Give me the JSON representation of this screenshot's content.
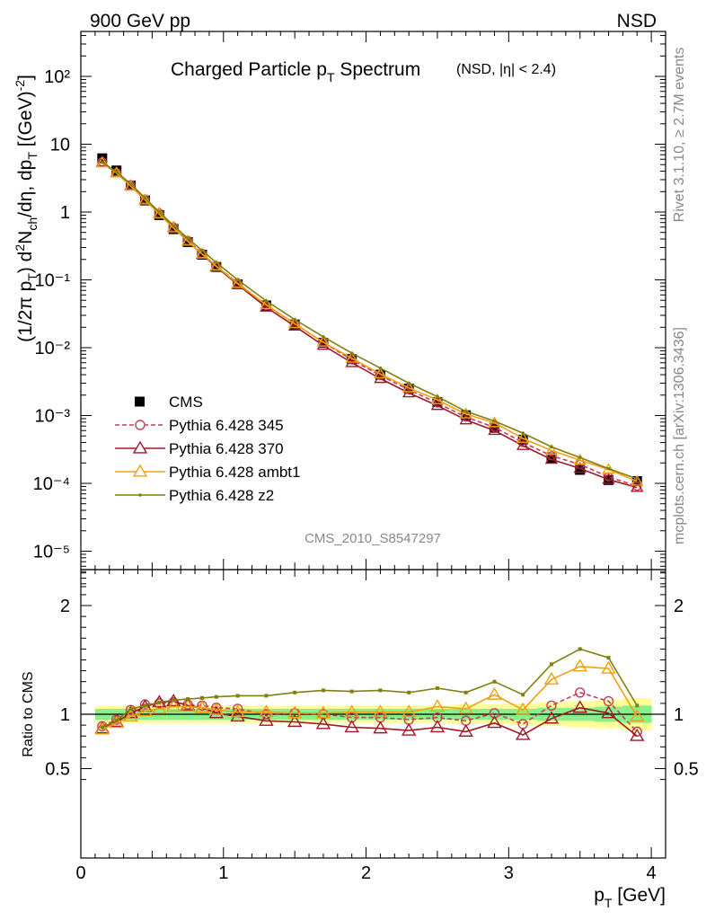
{
  "header": {
    "energy_label": "900 GeV pp",
    "selection_label": "NSD"
  },
  "side_labels": {
    "rivet": "Rivet 3.1.10, ≥ 2.7M events",
    "mcplots": "mcplots.cern.ch [arXiv:1306.3436]"
  },
  "analysis_id": "CMS_2010_S8547297",
  "chart_data": [
    {
      "type": "line",
      "title": "Charged Particle p_T Spectrum",
      "subtitle": "(NSD, |η| < 2.4)",
      "ylabel": "(1/2π p_T) d²N_ch/dη, dp_T [(GeV)⁻²]",
      "xlabel": "p_T [GeV]",
      "yscale": "log",
      "xlim": [
        0,
        4.1
      ],
      "ylim": [
        3e-06,
        400
      ],
      "yticks": [
        "10⁻⁵",
        "10⁻⁴",
        "10⁻³",
        "10⁻²",
        "10⁻¹",
        "1",
        "10",
        "10²"
      ],
      "legend": "middle-left",
      "x": [
        0.15,
        0.25,
        0.35,
        0.45,
        0.55,
        0.65,
        0.75,
        0.85,
        0.95,
        1.1,
        1.3,
        1.5,
        1.7,
        1.9,
        2.1,
        2.3,
        2.5,
        2.7,
        2.9,
        3.1,
        3.3,
        3.5,
        3.7,
        3.9
      ],
      "series": [
        {
          "name": "CMS",
          "style": "data",
          "color": "#000000",
          "values": [
            6.2,
            4.1,
            2.45,
            1.48,
            0.9,
            0.56,
            0.36,
            0.235,
            0.155,
            0.086,
            0.042,
            0.022,
            0.0118,
            0.0068,
            0.004,
            0.0025,
            0.00158,
            0.00101,
            0.00066,
            0.00044,
            0.000235,
            0.000158,
            0.000112,
            0.000108
          ]
        },
        {
          "name": "Pythia 6.428 345",
          "style": "circle-dashed",
          "color": "#c0405a",
          "values": [
            5.5,
            3.8,
            2.5,
            1.55,
            0.96,
            0.6,
            0.38,
            0.245,
            0.16,
            0.09,
            0.042,
            0.0225,
            0.012,
            0.0066,
            0.0039,
            0.0024,
            0.00153,
            0.00095,
            0.00067,
            0.0004,
            0.000255,
            0.00019,
            0.000125,
            9.1e-05
          ]
        },
        {
          "name": "Pythia 6.428 370",
          "style": "triangle-solid",
          "color": "#a01828",
          "values": [
            5.4,
            3.8,
            2.45,
            1.5,
            0.95,
            0.59,
            0.37,
            0.238,
            0.155,
            0.085,
            0.0395,
            0.0207,
            0.0108,
            0.006,
            0.0035,
            0.00215,
            0.0014,
            0.00086,
            0.0006,
            0.00036,
            0.000225,
            0.000166,
            0.000114,
            8.7e-05
          ]
        },
        {
          "name": "Pythia 6.428 ambt1",
          "style": "triangle-solid",
          "color": "#f0a010",
          "values": [
            5.3,
            3.75,
            2.4,
            1.5,
            0.93,
            0.58,
            0.37,
            0.24,
            0.16,
            0.088,
            0.043,
            0.0225,
            0.012,
            0.007,
            0.0041,
            0.00255,
            0.0017,
            0.00105,
            0.00078,
            0.00046,
            0.000305,
            0.00022,
            0.00016,
            0.000107
          ]
        },
        {
          "name": "Pythia 6.428 z2",
          "style": "dot-solid",
          "color": "#808010",
          "values": [
            5.4,
            3.9,
            2.6,
            1.6,
            1.0,
            0.63,
            0.41,
            0.27,
            0.18,
            0.1,
            0.049,
            0.026,
            0.0145,
            0.0083,
            0.005,
            0.003,
            0.0019,
            0.00115,
            0.00083,
            0.00055,
            0.000345,
            0.00024,
            0.000165,
            0.000117
          ]
        }
      ]
    },
    {
      "type": "line",
      "ylabel": "Ratio to CMS",
      "xlabel": "p_T [GeV]",
      "xlim": [
        0,
        4.1
      ],
      "ylim": [
        0.35,
        2.35
      ],
      "yticks": [
        "0.5",
        "1",
        "2"
      ],
      "xticks": [
        "0",
        "1",
        "2",
        "3",
        "4"
      ],
      "x": [
        0.15,
        0.25,
        0.35,
        0.45,
        0.55,
        0.65,
        0.75,
        0.85,
        0.95,
        1.1,
        1.3,
        1.5,
        1.7,
        1.9,
        2.1,
        2.3,
        2.5,
        2.7,
        2.9,
        3.1,
        3.3,
        3.5,
        3.7,
        3.9
      ],
      "band_edges": [
        0.1,
        0.2,
        0.3,
        0.4,
        0.5,
        0.6,
        0.7,
        0.8,
        0.9,
        1.0,
        1.2,
        1.4,
        1.6,
        1.8,
        2.0,
        2.2,
        2.4,
        2.6,
        2.8,
        3.0,
        3.2,
        3.4,
        3.6,
        3.8,
        4.0
      ],
      "band_inner_halfwidth": [
        0.05,
        0.05,
        0.05,
        0.05,
        0.05,
        0.05,
        0.05,
        0.05,
        0.05,
        0.05,
        0.05,
        0.05,
        0.05,
        0.05,
        0.05,
        0.05,
        0.05,
        0.05,
        0.05,
        0.05,
        0.06,
        0.06,
        0.07,
        0.08
      ],
      "band_outer_halfwidth": [
        0.08,
        0.08,
        0.08,
        0.08,
        0.08,
        0.08,
        0.08,
        0.08,
        0.08,
        0.08,
        0.08,
        0.08,
        0.08,
        0.08,
        0.08,
        0.08,
        0.08,
        0.09,
        0.09,
        0.1,
        0.11,
        0.12,
        0.13,
        0.15
      ],
      "series": [
        {
          "name": "Pythia 6.428 345",
          "style": "circle-dashed",
          "color": "#c0405a",
          "values": [
            0.89,
            0.95,
            1.04,
            1.09,
            1.1,
            1.11,
            1.09,
            1.08,
            1.06,
            1.05,
            1.0,
            1.01,
            1.0,
            0.97,
            0.97,
            0.95,
            0.97,
            0.94,
            1.01,
            0.91,
            1.08,
            1.2,
            1.12,
            0.84
          ]
        },
        {
          "name": "Pythia 6.428 370",
          "style": "triangle-solid",
          "color": "#a01828",
          "values": [
            0.87,
            0.93,
            1.01,
            1.07,
            1.11,
            1.12,
            1.08,
            1.06,
            1.01,
            0.98,
            0.94,
            0.93,
            0.91,
            0.88,
            0.87,
            0.85,
            0.88,
            0.84,
            0.92,
            0.81,
            0.96,
            1.06,
            1.01,
            0.8
          ]
        },
        {
          "name": "Pythia 6.428 ambt1",
          "style": "triangle-solid",
          "color": "#f0a010",
          "values": [
            0.86,
            0.92,
            0.98,
            1.03,
            1.05,
            1.07,
            1.07,
            1.06,
            1.04,
            1.02,
            1.02,
            1.01,
            1.01,
            1.02,
            1.02,
            1.02,
            1.07,
            1.05,
            1.18,
            1.04,
            1.32,
            1.44,
            1.42,
            0.98
          ]
        },
        {
          "name": "Pythia 6.428 z2",
          "style": "dot-solid",
          "color": "#808010",
          "values": [
            0.88,
            0.94,
            1.05,
            1.08,
            1.11,
            1.13,
            1.14,
            1.15,
            1.16,
            1.17,
            1.17,
            1.2,
            1.22,
            1.21,
            1.22,
            1.2,
            1.24,
            1.2,
            1.3,
            1.18,
            1.46,
            1.6,
            1.52,
            1.08
          ]
        }
      ]
    }
  ]
}
